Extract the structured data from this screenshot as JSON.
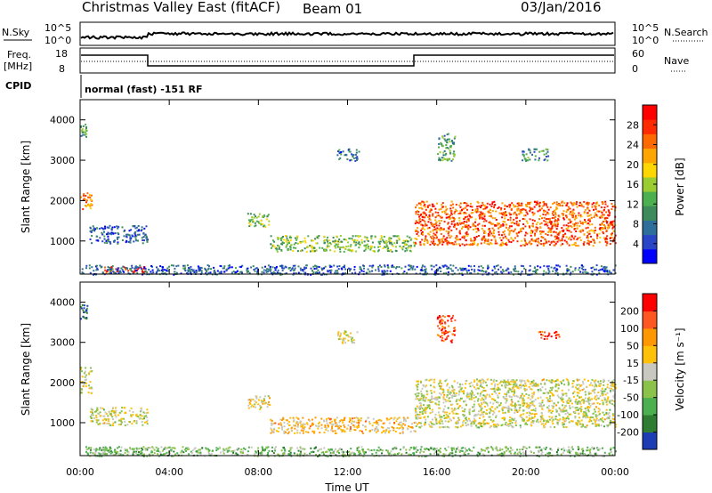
{
  "header": {
    "title": "Christmas Valley East (fitACF)",
    "beam": "Beam 01",
    "date": "03/Jan/2016"
  },
  "top_panels": {
    "nsky_label": "N.Sky",
    "nsky_ticks": [
      "10^5",
      "10^0"
    ],
    "nsearch_label": "N.Search",
    "nsearch_ticks": [
      "10^5",
      "10^0"
    ],
    "freq_label_line1": "Freq.",
    "freq_label_line2": "[MHz]",
    "freq_ticks": [
      "18",
      "8"
    ],
    "nave_label": "Nave",
    "nave_ticks": [
      "60",
      "0"
    ],
    "cpid_label": "CPID",
    "cpid_text": "normal (fast) -151 RF"
  },
  "chart_data": [
    {
      "type": "heatmap",
      "name": "power",
      "ylabel": "Slant Range [km]",
      "yticks": [
        "4000",
        "3000",
        "2000",
        "1000"
      ],
      "ylim": [
        180,
        4500
      ],
      "xlim": [
        0,
        24
      ],
      "colorbar_label": "Power [dB]",
      "colorbar_ticks": [
        "28",
        "24",
        "20",
        "16",
        "12",
        "8",
        "4"
      ],
      "colorbar_colors": [
        "#0000ff",
        "#2a44c8",
        "#2e6e9a",
        "#3d8a5a",
        "#4caf50",
        "#9acd32",
        "#ffd700",
        "#ffa500",
        "#ff6a00",
        "#ff2a00",
        "#ff0000"
      ],
      "features": [
        {
          "t0": 0.0,
          "t1": 0.5,
          "r0": 1750,
          "r1": 2250,
          "level": 0.75
        },
        {
          "t0": 0.0,
          "t1": 0.3,
          "r0": 3600,
          "r1": 3950,
          "level": 0.35
        },
        {
          "t0": 0.4,
          "t1": 3.0,
          "r0": 950,
          "r1": 1400,
          "level": 0.2
        },
        {
          "t0": 0.9,
          "t1": 3.0,
          "r0": 220,
          "r1": 380,
          "level": 0.9
        },
        {
          "t0": 7.5,
          "t1": 8.5,
          "r0": 1350,
          "r1": 1700,
          "level": 0.45
        },
        {
          "t0": 8.5,
          "t1": 15.0,
          "r0": 750,
          "r1": 1150,
          "level": 0.45
        },
        {
          "t0": 11.5,
          "t1": 12.5,
          "r0": 3000,
          "r1": 3300,
          "level": 0.25
        },
        {
          "t0": 15.0,
          "t1": 24.0,
          "r0": 900,
          "r1": 2000,
          "level": 0.8
        },
        {
          "t0": 16.0,
          "t1": 16.8,
          "r0": 3000,
          "r1": 3700,
          "level": 0.35
        },
        {
          "t0": 19.8,
          "t1": 21.0,
          "r0": 3000,
          "r1": 3300,
          "level": 0.3
        },
        {
          "t0": 0.0,
          "t1": 24.0,
          "r0": 180,
          "r1": 420,
          "level": 0.2
        }
      ]
    },
    {
      "type": "heatmap",
      "name": "velocity",
      "ylabel": "Slant Range [km]",
      "yticks": [
        "4000",
        "3000",
        "2000",
        "1000"
      ],
      "ylim": [
        180,
        4500
      ],
      "xlim": [
        0,
        24
      ],
      "xticks": [
        "00:00",
        "04:00",
        "08:00",
        "12:00",
        "16:00",
        "20:00",
        "00:00"
      ],
      "xlabel": "Time UT",
      "colorbar_label": "Velocity [m s⁻¹]",
      "colorbar_ticks": [
        "200",
        "100",
        "50",
        "15",
        "-15",
        "-50",
        "-100",
        "-200"
      ],
      "colorbar_colors": [
        "#1e3cb4",
        "#2e7d32",
        "#4caf50",
        "#8bc34a",
        "#c8c8c0",
        "#ffc107",
        "#ff9800",
        "#ff5722",
        "#ff0000"
      ],
      "features": [
        {
          "t0": 0.0,
          "t1": 0.5,
          "r0": 1750,
          "r1": 2400,
          "level": 0.5
        },
        {
          "t0": 0.0,
          "t1": 0.3,
          "r0": 3600,
          "r1": 3950,
          "level": 0.1
        },
        {
          "t0": 0.4,
          "t1": 3.0,
          "r0": 950,
          "r1": 1400,
          "level": 0.5
        },
        {
          "t0": 0.9,
          "t1": 3.0,
          "r0": 220,
          "r1": 380,
          "level": 0.3
        },
        {
          "t0": 7.5,
          "t1": 8.5,
          "r0": 1350,
          "r1": 1700,
          "level": 0.55
        },
        {
          "t0": 8.5,
          "t1": 15.0,
          "r0": 750,
          "r1": 1150,
          "level": 0.62
        },
        {
          "t0": 11.5,
          "t1": 12.5,
          "r0": 3000,
          "r1": 3300,
          "level": 0.5
        },
        {
          "t0": 15.0,
          "t1": 24.0,
          "r0": 900,
          "r1": 2100,
          "level": 0.5
        },
        {
          "t0": 16.0,
          "t1": 16.8,
          "r0": 3000,
          "r1": 3700,
          "level": 0.85
        },
        {
          "t0": 20.5,
          "t1": 21.5,
          "r0": 3100,
          "r1": 3300,
          "level": 0.9
        },
        {
          "t0": 0.0,
          "t1": 24.0,
          "r0": 180,
          "r1": 420,
          "level": 0.35
        }
      ]
    }
  ]
}
